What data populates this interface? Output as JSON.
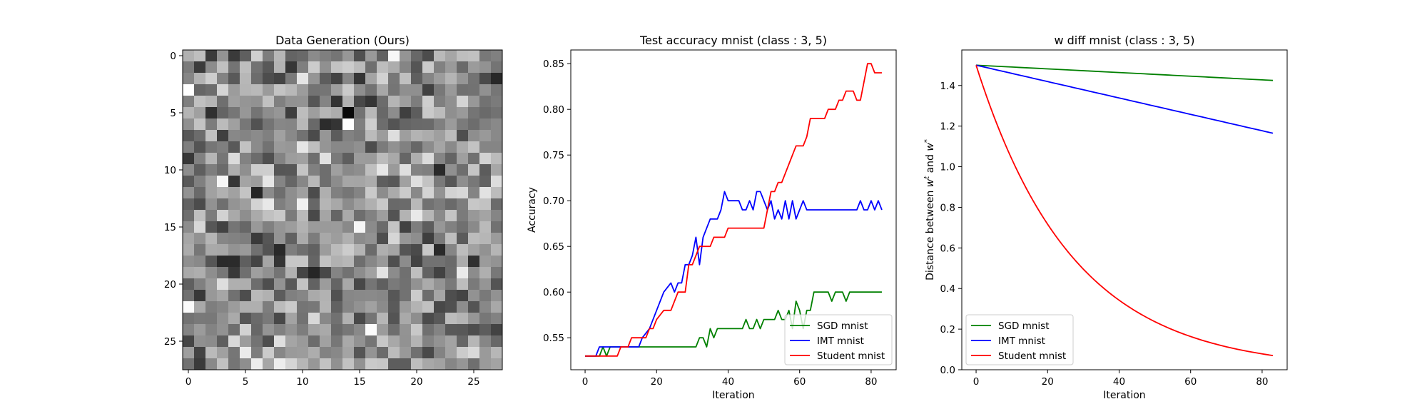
{
  "chart_data": [
    {
      "type": "heatmap",
      "title": "Data Generation (Ours)",
      "xlabel": "",
      "ylabel": "",
      "rows": 28,
      "cols": 28,
      "colormap": "gray",
      "xlim": [
        0,
        27
      ],
      "ylim": [
        27,
        0
      ],
      "xticks": [
        0,
        5,
        10,
        15,
        20,
        25
      ],
      "yticks": [
        0,
        5,
        10,
        15,
        20,
        25
      ],
      "values_description_seed": 1337
    },
    {
      "type": "line",
      "title": "Test accuracy mnist (class : 3, 5)",
      "xlabel": "Iteration",
      "ylabel": "Accuracy",
      "xlim": [
        -4,
        87
      ],
      "ylim": [
        0.515,
        0.865
      ],
      "xticks": [
        0,
        20,
        40,
        60,
        80
      ],
      "yticks": [
        0.55,
        0.6,
        0.65,
        0.7,
        0.75,
        0.8,
        0.85
      ],
      "ytick_labels": [
        "0.55",
        "0.60",
        "0.65",
        "0.70",
        "0.75",
        "0.80",
        "0.85"
      ],
      "legend": "lower-right",
      "series": [
        {
          "name": "SGD mnist",
          "color": "#008000",
          "points": [
            [
              0,
              0.53
            ],
            [
              4,
              0.53
            ],
            [
              5,
              0.54
            ],
            [
              6,
              0.53
            ],
            [
              7,
              0.54
            ],
            [
              31,
              0.54
            ],
            [
              32,
              0.55
            ],
            [
              33,
              0.55
            ],
            [
              34,
              0.54
            ],
            [
              35,
              0.56
            ],
            [
              36,
              0.55
            ],
            [
              37,
              0.56
            ],
            [
              44,
              0.56
            ],
            [
              45,
              0.57
            ],
            [
              46,
              0.56
            ],
            [
              47,
              0.56
            ],
            [
              48,
              0.57
            ],
            [
              49,
              0.56
            ],
            [
              50,
              0.57
            ],
            [
              53,
              0.57
            ],
            [
              54,
              0.58
            ],
            [
              55,
              0.57
            ],
            [
              56,
              0.57
            ],
            [
              57,
              0.58
            ],
            [
              58,
              0.56
            ],
            [
              59,
              0.59
            ],
            [
              60,
              0.58
            ],
            [
              61,
              0.56
            ],
            [
              62,
              0.58
            ],
            [
              63,
              0.58
            ],
            [
              64,
              0.6
            ],
            [
              68,
              0.6
            ],
            [
              69,
              0.59
            ],
            [
              70,
              0.6
            ],
            [
              72,
              0.6
            ],
            [
              73,
              0.59
            ],
            [
              74,
              0.6
            ],
            [
              83,
              0.6
            ]
          ]
        },
        {
          "name": "IMT mnist",
          "color": "#0000ff",
          "points": [
            [
              0,
              0.53
            ],
            [
              3,
              0.53
            ],
            [
              4,
              0.54
            ],
            [
              15,
              0.54
            ],
            [
              16,
              0.55
            ],
            [
              18,
              0.56
            ],
            [
              20,
              0.58
            ],
            [
              22,
              0.6
            ],
            [
              24,
              0.61
            ],
            [
              25,
              0.6
            ],
            [
              26,
              0.61
            ],
            [
              27,
              0.61
            ],
            [
              28,
              0.63
            ],
            [
              29,
              0.63
            ],
            [
              30,
              0.64
            ],
            [
              31,
              0.66
            ],
            [
              32,
              0.63
            ],
            [
              33,
              0.66
            ],
            [
              34,
              0.67
            ],
            [
              35,
              0.68
            ],
            [
              37,
              0.68
            ],
            [
              38,
              0.69
            ],
            [
              39,
              0.71
            ],
            [
              40,
              0.7
            ],
            [
              43,
              0.7
            ],
            [
              44,
              0.69
            ],
            [
              45,
              0.69
            ],
            [
              46,
              0.7
            ],
            [
              47,
              0.69
            ],
            [
              48,
              0.71
            ],
            [
              49,
              0.71
            ],
            [
              50,
              0.7
            ],
            [
              51,
              0.69
            ],
            [
              52,
              0.7
            ],
            [
              53,
              0.68
            ],
            [
              54,
              0.69
            ],
            [
              55,
              0.68
            ],
            [
              56,
              0.7
            ],
            [
              57,
              0.68
            ],
            [
              58,
              0.7
            ],
            [
              59,
              0.68
            ],
            [
              60,
              0.69
            ],
            [
              61,
              0.7
            ],
            [
              62,
              0.69
            ],
            [
              76,
              0.69
            ],
            [
              77,
              0.7
            ],
            [
              78,
              0.69
            ],
            [
              79,
              0.69
            ],
            [
              80,
              0.7
            ],
            [
              81,
              0.69
            ],
            [
              82,
              0.7
            ],
            [
              83,
              0.69
            ]
          ]
        },
        {
          "name": "Student mnist",
          "color": "#ff0000",
          "points": [
            [
              0,
              0.53
            ],
            [
              9,
              0.53
            ],
            [
              10,
              0.54
            ],
            [
              12,
              0.54
            ],
            [
              13,
              0.55
            ],
            [
              17,
              0.55
            ],
            [
              18,
              0.56
            ],
            [
              19,
              0.56
            ],
            [
              20,
              0.57
            ],
            [
              22,
              0.58
            ],
            [
              24,
              0.58
            ],
            [
              25,
              0.59
            ],
            [
              26,
              0.6
            ],
            [
              28,
              0.6
            ],
            [
              29,
              0.63
            ],
            [
              30,
              0.63
            ],
            [
              31,
              0.64
            ],
            [
              32,
              0.65
            ],
            [
              35,
              0.65
            ],
            [
              36,
              0.66
            ],
            [
              39,
              0.66
            ],
            [
              40,
              0.67
            ],
            [
              50,
              0.67
            ],
            [
              51,
              0.69
            ],
            [
              52,
              0.71
            ],
            [
              53,
              0.71
            ],
            [
              54,
              0.72
            ],
            [
              55,
              0.72
            ],
            [
              56,
              0.73
            ],
            [
              57,
              0.74
            ],
            [
              58,
              0.75
            ],
            [
              59,
              0.76
            ],
            [
              61,
              0.76
            ],
            [
              62,
              0.77
            ],
            [
              63,
              0.79
            ],
            [
              67,
              0.79
            ],
            [
              68,
              0.8
            ],
            [
              70,
              0.8
            ],
            [
              71,
              0.81
            ],
            [
              72,
              0.81
            ],
            [
              73,
              0.82
            ],
            [
              75,
              0.82
            ],
            [
              76,
              0.81
            ],
            [
              77,
              0.81
            ],
            [
              78,
              0.83
            ],
            [
              79,
              0.85
            ],
            [
              80,
              0.85
            ],
            [
              81,
              0.84
            ],
            [
              83,
              0.84
            ]
          ]
        }
      ]
    },
    {
      "type": "line",
      "title": "w diff mnist (class : 3, 5)",
      "xlabel": "Iteration",
      "ylabel_parts": {
        "main": "Distance between ",
        "w1": "w",
        "sup1": "t",
        "and": " and ",
        "w2": "w",
        "sup2": "*"
      },
      "xlim": [
        -4,
        87
      ],
      "ylim": [
        0.0,
        1.575
      ],
      "xticks": [
        0,
        20,
        40,
        60,
        80
      ],
      "yticks": [
        0.0,
        0.2,
        0.4,
        0.6,
        0.8,
        1.0,
        1.2,
        1.4
      ],
      "ytick_labels": [
        "0.0",
        "0.2",
        "0.4",
        "0.6",
        "0.8",
        "1.0",
        "1.2",
        "1.4"
      ],
      "legend": "lower-left",
      "series": [
        {
          "name": "SGD mnist",
          "color": "#008000",
          "model": "linear",
          "start": 1.5,
          "end": 1.425,
          "x_end": 83
        },
        {
          "name": "IMT mnist",
          "color": "#0000ff",
          "model": "linear",
          "start": 1.5,
          "end": 1.165,
          "x_end": 83
        },
        {
          "name": "Student mnist",
          "color": "#ff0000",
          "model": "exp",
          "start": 1.5,
          "end": 0.07,
          "x_end": 83
        }
      ]
    }
  ]
}
